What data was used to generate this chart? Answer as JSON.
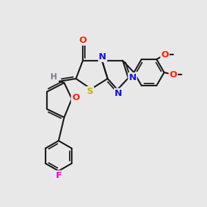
{
  "bg_color": "#e8e8e8",
  "bond_color": "#1a1a1a",
  "bond_width": 1.6,
  "dbo": 0.1,
  "atom_colors": {
    "O": "#ff2200",
    "N": "#1111ee",
    "S": "#c8b000",
    "F": "#ee00cc",
    "H": "#708090",
    "C": "#1a1a1a"
  },
  "font_size": 9.5
}
